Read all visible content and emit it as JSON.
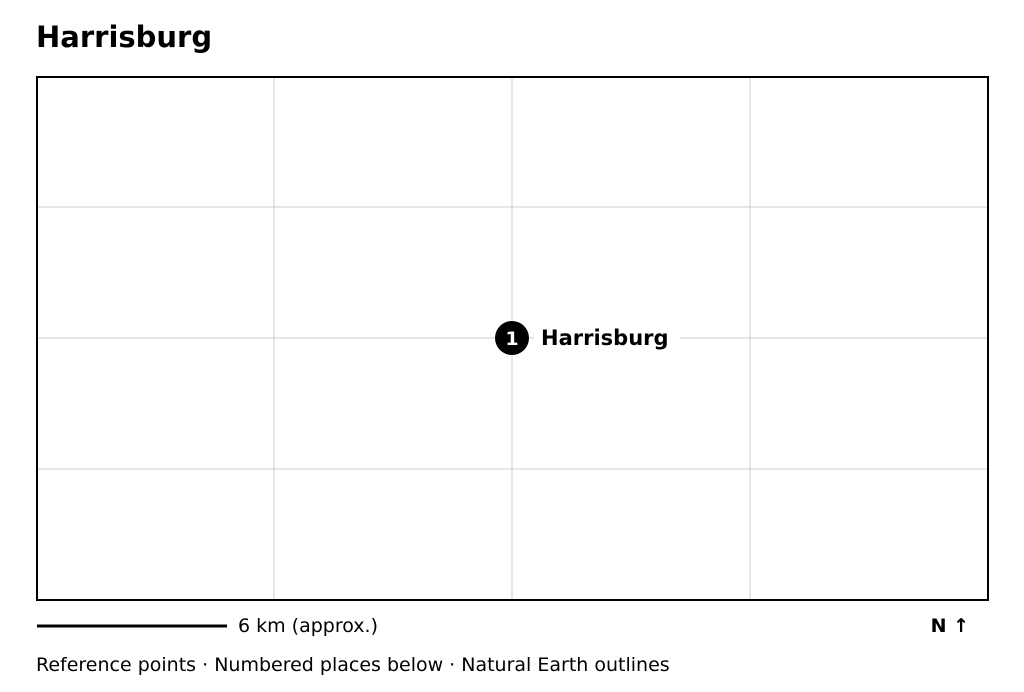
{
  "title": "Harrisburg",
  "places": [
    {
      "number": "1",
      "label": "Harrisburg"
    }
  ],
  "scale": "6 km (approx.)",
  "north": "N ↑",
  "footer": "Reference points · Numbered places below · Natural Earth outlines"
}
